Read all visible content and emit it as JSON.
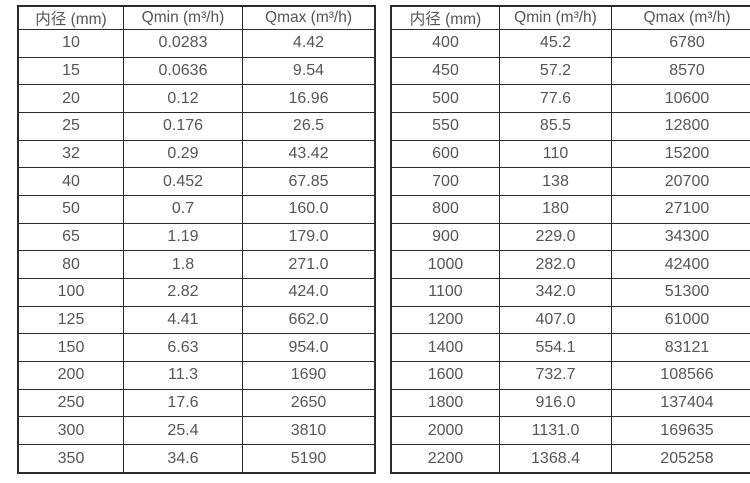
{
  "page": {
    "background_color": "#ffffff",
    "border_color": "#2b2b2b",
    "text_color": "#555555"
  },
  "chart_data": [
    {
      "type": "table",
      "title": "",
      "columns": [
        "内径 (mm)",
        "Qmin (m³/h)",
        "Qmax (m³/h)"
      ],
      "rows": [
        [
          "10",
          "0.0283",
          "4.42"
        ],
        [
          "15",
          "0.0636",
          "9.54"
        ],
        [
          "20",
          "0.12",
          "16.96"
        ],
        [
          "25",
          "0.176",
          "26.5"
        ],
        [
          "32",
          "0.29",
          "43.42"
        ],
        [
          "40",
          "0.452",
          "67.85"
        ],
        [
          "50",
          "0.7",
          "160.0"
        ],
        [
          "65",
          "1.19",
          "179.0"
        ],
        [
          "80",
          "1.8",
          "271.0"
        ],
        [
          "100",
          "2.82",
          "424.0"
        ],
        [
          "125",
          "4.41",
          "662.0"
        ],
        [
          "150",
          "6.63",
          "954.0"
        ],
        [
          "200",
          "11.3",
          "1690"
        ],
        [
          "250",
          "17.6",
          "2650"
        ],
        [
          "300",
          "25.4",
          "3810"
        ],
        [
          "350",
          "34.6",
          "5190"
        ]
      ]
    },
    {
      "type": "table",
      "title": "",
      "columns": [
        "内径 (mm)",
        "Qmin (m³/h)",
        "Qmax (m³/h)"
      ],
      "rows": [
        [
          "400",
          "45.2",
          "6780"
        ],
        [
          "450",
          "57.2",
          "8570"
        ],
        [
          "500",
          "77.6",
          "10600"
        ],
        [
          "550",
          "85.5",
          "12800"
        ],
        [
          "600",
          "110",
          "15200"
        ],
        [
          "700",
          "138",
          "20700"
        ],
        [
          "800",
          "180",
          "27100"
        ],
        [
          "900",
          "229.0",
          "34300"
        ],
        [
          "1000",
          "282.0",
          "42400"
        ],
        [
          "1100",
          "342.0",
          "51300"
        ],
        [
          "1200",
          "407.0",
          "61000"
        ],
        [
          "1400",
          "554.1",
          "83121"
        ],
        [
          "1600",
          "732.7",
          "108566"
        ],
        [
          "1800",
          "916.0",
          "137404"
        ],
        [
          "2000",
          "1131.0",
          "169635"
        ],
        [
          "2200",
          "1368.4",
          "205258"
        ]
      ]
    }
  ]
}
